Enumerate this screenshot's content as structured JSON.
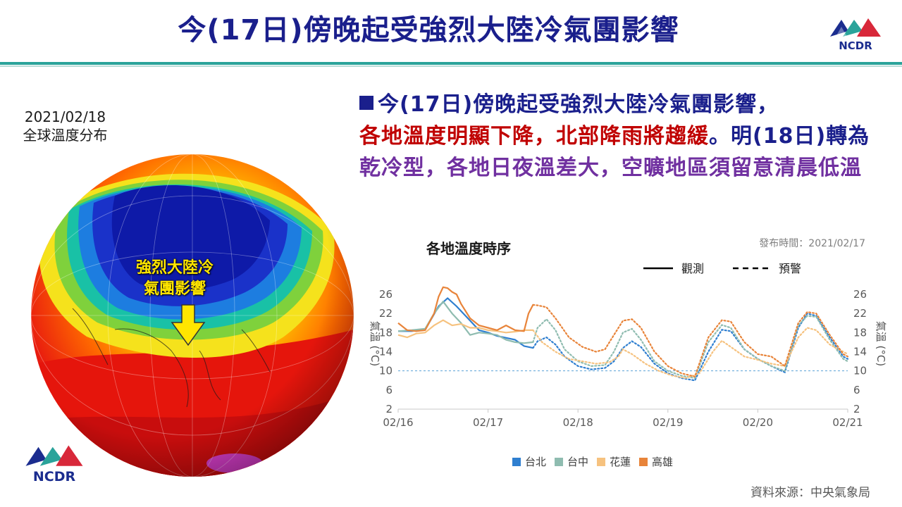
{
  "header": {
    "title": "今(17日)傍晚起受強烈大陸冷氣團影響",
    "logo_text": "NCDR"
  },
  "map": {
    "date": "2021/02/18",
    "caption": "全球溫度分布",
    "label_line1": "強烈大陸冷",
    "label_line2": "氣團影響"
  },
  "bullet": {
    "part1": "今(17日)傍晚起受強烈大陸冷氣團影響，",
    "part2_red": "各地溫度明顯下降，北部降雨將趨緩",
    "part3": "。明(18日)轉為",
    "part4_purple": "乾冷型，各地日夜溫差大，空曠地區須留意清晨低溫"
  },
  "chart_data": {
    "type": "line",
    "title": "各地溫度時序",
    "publish_time": "發布時間：2021/02/17",
    "ylabel": "氣溫 (°C)",
    "ylim": [
      2,
      26
    ],
    "yticks": [
      2,
      6,
      10,
      14,
      18,
      22,
      26
    ],
    "xlim": [
      0,
      5
    ],
    "xticks": [
      0,
      1,
      2,
      3,
      4,
      5
    ],
    "xtick_labels": [
      "02/16",
      "02/17",
      "02/18",
      "02/19",
      "02/20",
      "02/21"
    ],
    "reference_line": 10,
    "legend_style": {
      "solid": "觀測",
      "dashed": "預警"
    },
    "series": [
      {
        "name": "台北",
        "color": "#2f7fd0",
        "observed": [
          [
            0,
            18.3
          ],
          [
            0.15,
            18.3
          ],
          [
            0.3,
            18.6
          ],
          [
            0.45,
            23.5
          ],
          [
            0.55,
            25.2
          ],
          [
            0.65,
            23.5
          ],
          [
            0.8,
            20.5
          ],
          [
            0.9,
            18.5
          ],
          [
            1.0,
            18
          ],
          [
            1.1,
            17.3
          ],
          [
            1.3,
            16.5
          ],
          [
            1.4,
            15.2
          ],
          [
            1.5,
            14.8
          ]
        ],
        "forecast": [
          [
            1.5,
            14.8
          ],
          [
            1.55,
            16.2
          ],
          [
            1.65,
            17
          ],
          [
            1.75,
            15.5
          ],
          [
            1.85,
            13
          ],
          [
            2.0,
            11
          ],
          [
            2.15,
            10.3
          ],
          [
            2.3,
            10.6
          ],
          [
            2.4,
            12
          ],
          [
            2.5,
            14.8
          ],
          [
            2.6,
            16.2
          ],
          [
            2.7,
            15
          ],
          [
            2.85,
            11.5
          ],
          [
            3.0,
            9.5
          ],
          [
            3.15,
            8.5
          ],
          [
            3.3,
            8
          ],
          [
            3.45,
            14
          ],
          [
            3.6,
            18.6
          ],
          [
            3.7,
            18.3
          ],
          [
            3.85,
            14.5
          ],
          [
            4.0,
            12.5
          ],
          [
            4.15,
            11
          ],
          [
            4.3,
            9.7
          ],
          [
            4.45,
            19
          ],
          [
            4.55,
            22
          ],
          [
            4.65,
            21.5
          ],
          [
            4.8,
            17
          ],
          [
            4.95,
            13
          ],
          [
            5.0,
            12.5
          ]
        ]
      },
      {
        "name": "台中",
        "color": "#8fbcb0",
        "observed": [
          [
            0,
            18.3
          ],
          [
            0.15,
            18.5
          ],
          [
            0.3,
            18.8
          ],
          [
            0.4,
            22
          ],
          [
            0.5,
            24.5
          ],
          [
            0.6,
            22
          ],
          [
            0.7,
            20
          ],
          [
            0.8,
            17.5
          ],
          [
            0.9,
            18
          ],
          [
            1.0,
            17.8
          ],
          [
            1.1,
            17.5
          ],
          [
            1.2,
            16.5
          ],
          [
            1.3,
            16
          ],
          [
            1.4,
            15.8
          ],
          [
            1.5,
            16
          ]
        ],
        "forecast": [
          [
            1.5,
            16
          ],
          [
            1.55,
            19
          ],
          [
            1.65,
            20.8
          ],
          [
            1.75,
            18.5
          ],
          [
            1.85,
            14.5
          ],
          [
            2.0,
            12
          ],
          [
            2.15,
            11
          ],
          [
            2.3,
            11.2
          ],
          [
            2.4,
            14
          ],
          [
            2.5,
            18
          ],
          [
            2.6,
            18.8
          ],
          [
            2.7,
            16.5
          ],
          [
            2.85,
            12
          ],
          [
            3.0,
            10
          ],
          [
            3.15,
            9
          ],
          [
            3.3,
            8.5
          ],
          [
            3.45,
            16
          ],
          [
            3.6,
            19.6
          ],
          [
            3.7,
            19
          ],
          [
            3.85,
            14.5
          ],
          [
            4.0,
            12.5
          ],
          [
            4.15,
            11
          ],
          [
            4.3,
            10
          ],
          [
            4.45,
            19.5
          ],
          [
            4.55,
            21.5
          ],
          [
            4.65,
            21.3
          ],
          [
            4.8,
            16.5
          ],
          [
            4.95,
            12.5
          ],
          [
            5.0,
            12
          ]
        ]
      },
      {
        "name": "花蓮",
        "color": "#f6c27f",
        "observed": [
          [
            0,
            17.5
          ],
          [
            0.1,
            17
          ],
          [
            0.2,
            17.8
          ],
          [
            0.3,
            18
          ],
          [
            0.4,
            19.5
          ],
          [
            0.5,
            20.6
          ],
          [
            0.6,
            19.5
          ],
          [
            0.7,
            19.8
          ],
          [
            0.8,
            19
          ],
          [
            0.9,
            19
          ],
          [
            1.0,
            18.5
          ],
          [
            1.1,
            18.3
          ],
          [
            1.2,
            18
          ],
          [
            1.3,
            18.2
          ],
          [
            1.4,
            18.5
          ],
          [
            1.5,
            18.5
          ]
        ],
        "forecast": [
          [
            1.5,
            18.5
          ],
          [
            1.6,
            16
          ],
          [
            1.75,
            14
          ],
          [
            1.9,
            12.5
          ],
          [
            2.05,
            12
          ],
          [
            2.2,
            11.5
          ],
          [
            2.35,
            11.8
          ],
          [
            2.45,
            13
          ],
          [
            2.5,
            14.5
          ],
          [
            2.6,
            13.5
          ],
          [
            2.75,
            11.5
          ],
          [
            2.9,
            10
          ],
          [
            3.05,
            9
          ],
          [
            3.2,
            8.5
          ],
          [
            3.35,
            9.5
          ],
          [
            3.5,
            14
          ],
          [
            3.6,
            16.3
          ],
          [
            3.7,
            15
          ],
          [
            3.85,
            13
          ],
          [
            4.0,
            12.3
          ],
          [
            4.15,
            11.5
          ],
          [
            4.3,
            11
          ],
          [
            4.45,
            17
          ],
          [
            4.55,
            19
          ],
          [
            4.65,
            18.5
          ],
          [
            4.8,
            15.5
          ],
          [
            4.95,
            14
          ],
          [
            5.0,
            13.5
          ]
        ]
      },
      {
        "name": "高雄",
        "color": "#e8843a",
        "observed": [
          [
            0,
            20
          ],
          [
            0.1,
            18.5
          ],
          [
            0.2,
            18.3
          ],
          [
            0.3,
            18.5
          ],
          [
            0.4,
            22
          ],
          [
            0.45,
            25.5
          ],
          [
            0.5,
            27.5
          ],
          [
            0.55,
            27.3
          ],
          [
            0.6,
            26.5
          ],
          [
            0.65,
            26
          ],
          [
            0.7,
            24
          ],
          [
            0.8,
            21
          ],
          [
            0.9,
            19.5
          ],
          [
            1.0,
            19
          ],
          [
            1.1,
            18.5
          ],
          [
            1.2,
            19.5
          ],
          [
            1.3,
            18.5
          ],
          [
            1.4,
            18.3
          ],
          [
            1.45,
            22
          ],
          [
            1.5,
            23.8
          ]
        ],
        "forecast": [
          [
            1.5,
            23.8
          ],
          [
            1.55,
            23.7
          ],
          [
            1.65,
            23.3
          ],
          [
            1.75,
            21
          ],
          [
            1.9,
            17
          ],
          [
            2.05,
            15
          ],
          [
            2.2,
            14
          ],
          [
            2.3,
            14.5
          ],
          [
            2.4,
            17.5
          ],
          [
            2.5,
            20.5
          ],
          [
            2.6,
            20.8
          ],
          [
            2.7,
            19
          ],
          [
            2.85,
            14
          ],
          [
            3.0,
            11
          ],
          [
            3.15,
            9.5
          ],
          [
            3.3,
            8.8
          ],
          [
            3.45,
            17
          ],
          [
            3.6,
            20.6
          ],
          [
            3.7,
            20.3
          ],
          [
            3.85,
            16
          ],
          [
            4.0,
            13.5
          ],
          [
            4.15,
            13
          ],
          [
            4.3,
            11
          ],
          [
            4.45,
            20
          ],
          [
            4.55,
            22.3
          ],
          [
            4.65,
            22
          ],
          [
            4.8,
            17.5
          ],
          [
            4.95,
            13.5
          ],
          [
            5.0,
            13
          ]
        ]
      }
    ]
  },
  "source": "資料來源：中央氣象局"
}
